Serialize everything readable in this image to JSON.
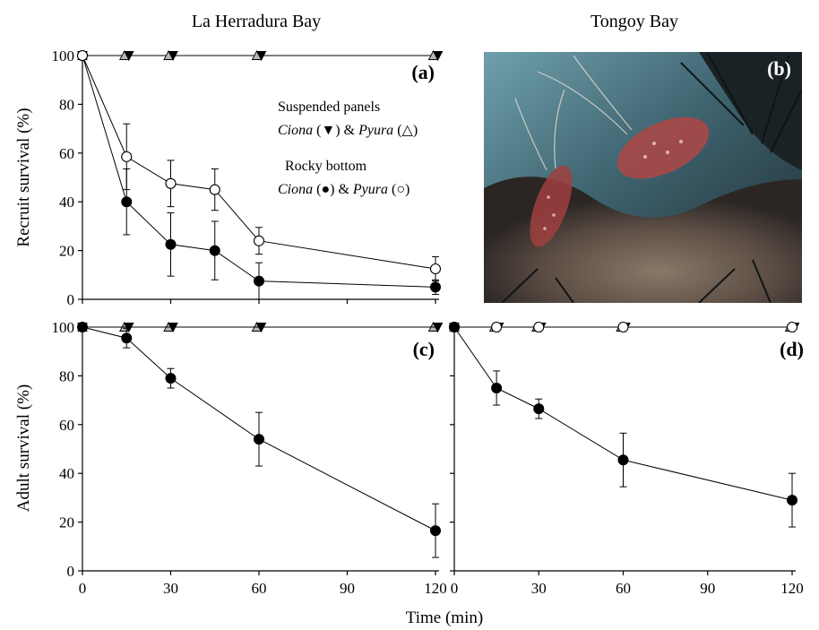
{
  "column_titles": {
    "left": "La Herradura Bay",
    "right": "Tongoy Bay"
  },
  "axis_titles": {
    "top_y": "Recruit survival (%)",
    "bottom_y": "Adult survival (%)",
    "x": "Time (min)"
  },
  "legend": {
    "suspended_heading": "Suspended panels",
    "suspended_line": [
      {
        "text": "Ciona",
        "italic": true
      },
      {
        "text": " (",
        "italic": false
      },
      {
        "text": "▼",
        "italic": false
      },
      {
        "text": ") & ",
        "italic": false
      },
      {
        "text": "Pyura",
        "italic": true
      },
      {
        "text": " (",
        "italic": false
      },
      {
        "text": "△",
        "italic": false
      },
      {
        "text": ")",
        "italic": false
      }
    ],
    "rocky_heading": "Rocky bottom",
    "rocky_line": [
      {
        "text": "Ciona",
        "italic": true
      },
      {
        "text": " (",
        "italic": false
      },
      {
        "text": "●",
        "italic": false
      },
      {
        "text": ") & ",
        "italic": false
      },
      {
        "text": "Pyura",
        "italic": true
      },
      {
        "text": " (",
        "italic": false
      },
      {
        "text": "○",
        "italic": false
      },
      {
        "text": ")",
        "italic": false
      }
    ]
  },
  "photo": {
    "panel_label": "(b)"
  },
  "colors": {
    "filled": "#000000",
    "open": "#ffffff",
    "triangle_open": "#b8b8b8",
    "photo_dark": "#1f2e33",
    "photo_water": "#5d8f9c",
    "shrimp": "#b04a4a",
    "rock": "#7a6a5c"
  },
  "chart_data": [
    {
      "id": "a",
      "label": "(a)",
      "type": "line",
      "xlim": [
        0,
        120
      ],
      "ylim": [
        0,
        100
      ],
      "xticks": [
        0,
        30,
        60,
        90,
        120
      ],
      "yticks": [
        0,
        20,
        40,
        60,
        80,
        100
      ],
      "series": [
        {
          "marker": "tri-down-filled",
          "x": [
            0,
            15,
            30,
            60,
            120
          ],
          "y": [
            100,
            100,
            100,
            100,
            100
          ]
        },
        {
          "marker": "tri-up-open",
          "x": [
            0,
            15,
            30,
            60,
            120
          ],
          "y": [
            100,
            100,
            100,
            100,
            100
          ]
        },
        {
          "marker": "circle-filled",
          "x": [
            0,
            15,
            30,
            45,
            60,
            120
          ],
          "y": [
            100,
            40,
            22.5,
            20,
            7.5,
            5
          ],
          "err": [
            0,
            13.5,
            13,
            12,
            7.5,
            3
          ]
        },
        {
          "marker": "circle-open",
          "x": [
            0,
            15,
            30,
            45,
            60,
            120
          ],
          "y": [
            100,
            58.5,
            47.5,
            45,
            24,
            12.5
          ],
          "err": [
            0,
            13.5,
            9.5,
            8.5,
            5.5,
            5
          ]
        }
      ]
    },
    {
      "id": "c",
      "label": "(c)",
      "type": "line",
      "xlim": [
        0,
        120
      ],
      "ylim": [
        0,
        100
      ],
      "xticks": [
        0,
        30,
        60,
        90,
        120
      ],
      "yticks": [
        0,
        20,
        40,
        60,
        80,
        100
      ],
      "series": [
        {
          "marker": "tri-up-open",
          "x": [
            0,
            15,
            30,
            60,
            120
          ],
          "y": [
            100,
            100,
            100,
            100,
            100
          ]
        },
        {
          "marker": "tri-down-filled",
          "x": [
            0,
            15,
            30,
            60,
            120
          ],
          "y": [
            100,
            100,
            100,
            100,
            100
          ]
        },
        {
          "marker": "circle-filled",
          "x": [
            0,
            15,
            30,
            60,
            120
          ],
          "y": [
            100,
            95.5,
            79,
            54,
            16.5
          ],
          "err": [
            0,
            4,
            4,
            11,
            11
          ]
        }
      ]
    },
    {
      "id": "d",
      "label": "(d)",
      "type": "line",
      "xlim": [
        0,
        120
      ],
      "ylim": [
        0,
        100
      ],
      "xticks": [
        0,
        30,
        60,
        90,
        120
      ],
      "yticks": [
        0,
        20,
        40,
        60,
        80,
        100
      ],
      "series": [
        {
          "marker": "tri-up-open",
          "x": [
            0,
            15,
            30,
            60,
            120
          ],
          "y": [
            100,
            100,
            100,
            100,
            100
          ]
        },
        {
          "marker": "tri-down-filled",
          "x": [
            0,
            15,
            30,
            60,
            120
          ],
          "y": [
            100,
            100,
            100,
            100,
            100
          ]
        },
        {
          "marker": "circle-open",
          "x": [
            0,
            15,
            30,
            60,
            120
          ],
          "y": [
            100,
            100,
            100,
            100,
            100
          ]
        },
        {
          "marker": "circle-filled",
          "x": [
            0,
            15,
            30,
            60,
            120
          ],
          "y": [
            100,
            75,
            66.5,
            45.5,
            29
          ],
          "err": [
            0,
            7,
            4,
            11,
            11
          ]
        }
      ]
    }
  ]
}
